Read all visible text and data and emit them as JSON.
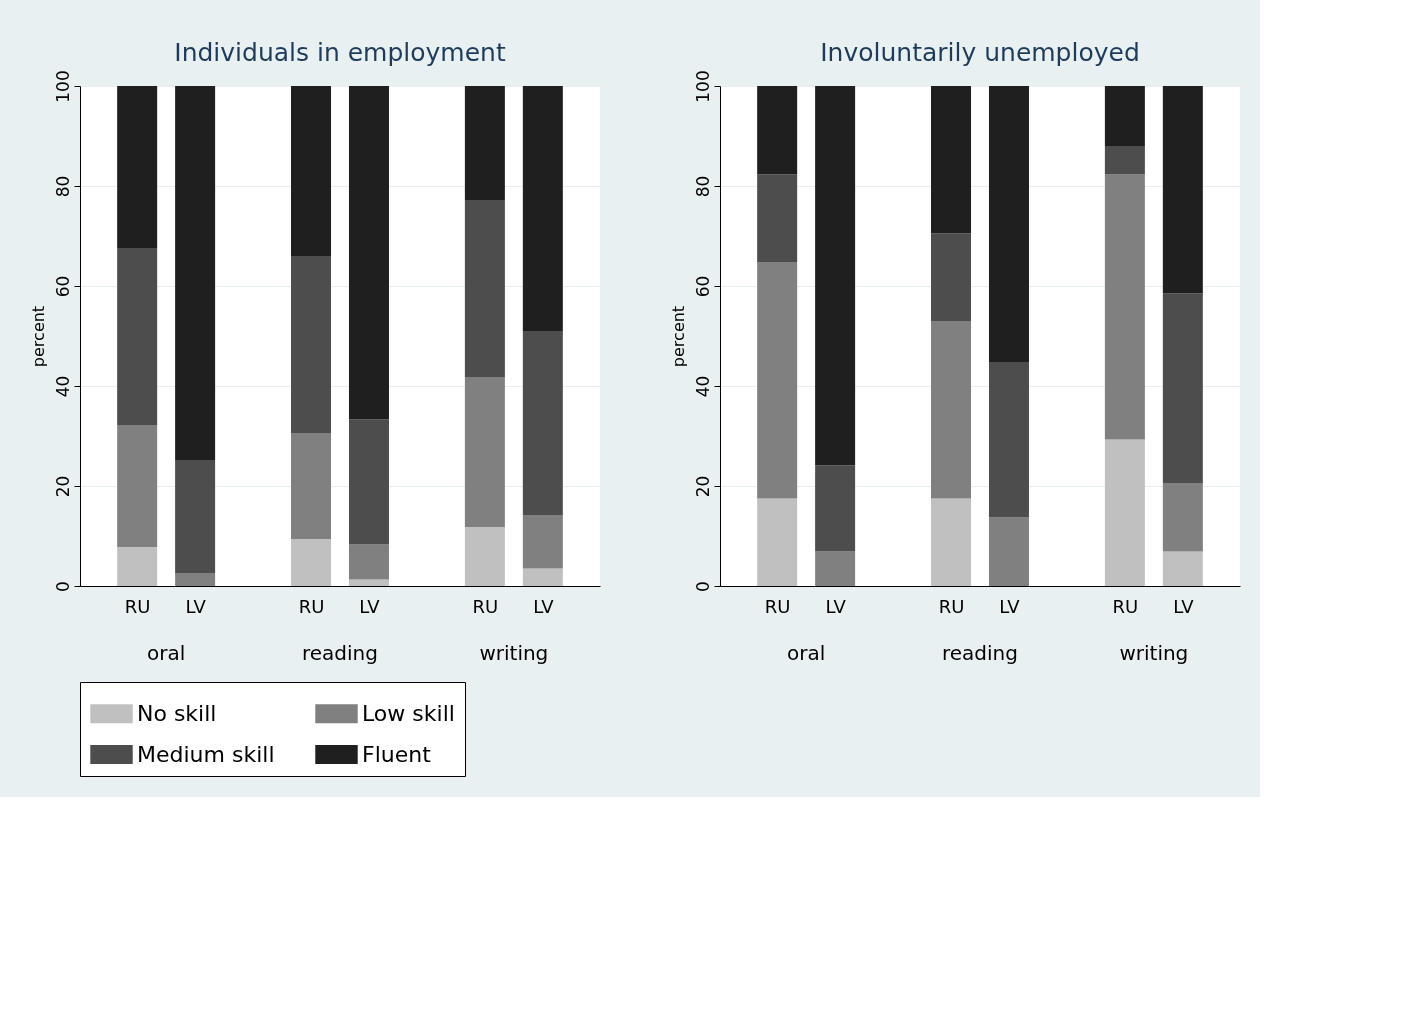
{
  "chart_data": [
    {
      "type": "bar",
      "stacked": true,
      "title": "Individuals in employment",
      "ylabel": "percent",
      "categories": [
        "RU",
        "LV",
        "RU",
        "LV",
        "RU",
        "LV"
      ],
      "annotations": [
        "oral",
        "reading",
        "writing"
      ],
      "ylim": [
        0,
        100
      ],
      "yticks": [
        0,
        20,
        40,
        60,
        80,
        100
      ],
      "grid": "y",
      "legend": "bottom",
      "series": [
        {
          "name": "No skill",
          "color": "#c0c0c0",
          "values": [
            7.8,
            0,
            9.4,
            1.3,
            11.8,
            3.5
          ]
        },
        {
          "name": "Low skill",
          "color": "#808080",
          "values": [
            24.4,
            2.6,
            21.2,
            7.0,
            30.0,
            10.7
          ]
        },
        {
          "name": "Medium skill",
          "color": "#4d4d4d",
          "values": [
            35.4,
            22.6,
            35.4,
            25.0,
            35.4,
            36.8
          ]
        },
        {
          "name": "Fluent",
          "color": "#1f1f1f",
          "values": [
            32.4,
            74.8,
            34.0,
            66.7,
            22.8,
            49.0
          ]
        }
      ]
    },
    {
      "type": "bar",
      "stacked": true,
      "title": "Involuntarily unemployed",
      "ylabel": "percent",
      "categories": [
        "RU",
        "LV",
        "RU",
        "LV",
        "RU",
        "LV"
      ],
      "annotations": [
        "oral",
        "reading",
        "writing"
      ],
      "ylim": [
        0,
        100
      ],
      "yticks": [
        0,
        20,
        40,
        60,
        80,
        100
      ],
      "grid": "y",
      "legend": "bottom",
      "series": [
        {
          "name": "No skill",
          "color": "#c0c0c0",
          "values": [
            17.5,
            0,
            17.5,
            0,
            29.3,
            6.9
          ]
        },
        {
          "name": "Low skill",
          "color": "#808080",
          "values": [
            47.3,
            6.9,
            35.5,
            13.7,
            53.0,
            13.7
          ]
        },
        {
          "name": "Medium skill",
          "color": "#4d4d4d",
          "values": [
            17.5,
            17.2,
            17.5,
            31.1,
            5.7,
            37.9
          ]
        },
        {
          "name": "Fluent",
          "color": "#1f1f1f",
          "values": [
            17.7,
            75.9,
            29.5,
            55.2,
            12.0,
            41.5
          ]
        }
      ]
    }
  ]
}
